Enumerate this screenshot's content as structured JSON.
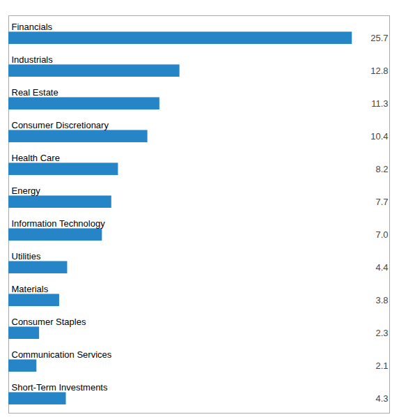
{
  "chart_data": {
    "type": "bar",
    "orientation": "horizontal",
    "categories": [
      "Financials",
      "Industrials",
      "Real Estate",
      "Consumer Discretionary",
      "Health Care",
      "Energy",
      "Information Technology",
      "Utilities",
      "Materials",
      "Consumer Staples",
      "Communication Services",
      "Short-Term Investments"
    ],
    "values": [
      25.7,
      12.8,
      11.3,
      10.4,
      8.2,
      7.7,
      7.0,
      4.4,
      3.8,
      2.3,
      2.1,
      4.3
    ],
    "value_labels": [
      "25.7",
      "12.8",
      "11.3",
      "10.4",
      "8.2",
      "7.7",
      "7.0",
      "4.4",
      "3.8",
      "2.3",
      "2.1",
      "4.3"
    ],
    "color": "#2585c7",
    "xlim": [
      0,
      28.5
    ],
    "data_labels": true,
    "tick_labels": false,
    "grid": false
  }
}
